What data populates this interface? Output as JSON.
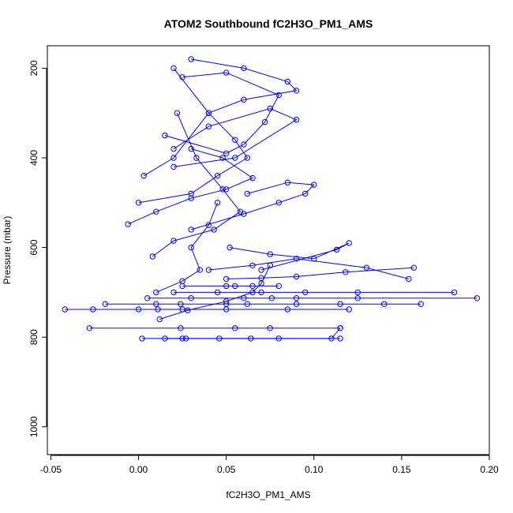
{
  "chart_data": {
    "type": "line",
    "title": "ATOM2 Southbound fC2H3O_PM1_AMS",
    "xlabel": "fC2H3O_PM1_AMS",
    "ylabel": "Pressure (mbar)",
    "xlim": [
      -0.052,
      0.2
    ],
    "ylim": [
      1062,
      150
    ],
    "y_reversed": true,
    "x_ticks": [
      -0.05,
      0.0,
      0.05,
      0.1,
      0.15,
      0.2
    ],
    "x_tick_labels": [
      "-0.05",
      "0.00",
      "0.05",
      "0.10",
      "0.15",
      "0.20"
    ],
    "y_ticks": [
      200,
      400,
      600,
      800,
      1000
    ],
    "y_tick_labels": [
      "200",
      "400",
      "600",
      "800",
      "1000"
    ],
    "grid": false,
    "legend": "none",
    "series_color": "#0000ff",
    "marker": "open-circle",
    "series": [
      {
        "x": [
          0.002,
          0.025,
          0.08,
          0.115
        ],
        "y": [
          803,
          803,
          803,
          803
        ]
      },
      {
        "x": [
          0.015,
          0.027,
          0.046,
          0.064,
          0.11,
          0.115
        ],
        "y": [
          803,
          803,
          803,
          803,
          803,
          780
        ]
      },
      {
        "x": [
          -0.028,
          0.024,
          0.055,
          0.075,
          0.115
        ],
        "y": [
          780,
          780,
          780,
          780,
          780
        ]
      },
      {
        "x": [
          -0.042,
          -0.026,
          0.0,
          0.011,
          0.025,
          0.05,
          0.085,
          0.12
        ],
        "y": [
          738,
          738,
          738,
          738,
          738,
          738,
          738,
          738
        ]
      },
      {
        "x": [
          -0.019,
          0.01,
          0.024,
          0.05,
          0.062,
          0.09,
          0.115,
          0.14,
          0.161
        ],
        "y": [
          726,
          726,
          726,
          726,
          726,
          726,
          726,
          726,
          726
        ]
      },
      {
        "x": [
          0.005,
          0.03,
          0.06,
          0.076,
          0.09,
          0.125,
          0.193
        ],
        "y": [
          713,
          713,
          713,
          713,
          713,
          713,
          713
        ]
      },
      {
        "x": [
          0.02,
          0.045,
          0.07,
          0.095,
          0.125,
          0.18
        ],
        "y": [
          700,
          700,
          700,
          700,
          700,
          700
        ]
      },
      {
        "x": [
          0.025,
          0.05,
          0.055,
          0.065,
          0.08
        ],
        "y": [
          686,
          686,
          686,
          686,
          686
        ]
      },
      {
        "x": [
          0.05,
          0.07,
          0.09,
          0.118,
          0.157
        ],
        "y": [
          670,
          668,
          665,
          655,
          645
        ]
      },
      {
        "x": [
          0.04,
          0.065,
          0.09,
          0.13,
          0.154
        ],
        "y": [
          650,
          640,
          625,
          645,
          670
        ]
      },
      {
        "x": [
          0.052,
          0.075,
          0.1,
          0.12,
          0.113,
          0.07
        ],
        "y": [
          600,
          615,
          625,
          590,
          605,
          650
        ]
      },
      {
        "x": [
          0.03,
          0.06,
          0.08,
          0.095,
          0.1,
          0.085,
          0.062
        ],
        "y": [
          560,
          525,
          500,
          480,
          460,
          455,
          480
        ]
      },
      {
        "x": [
          -0.006,
          0.01,
          0.03,
          0.05,
          0.065,
          0.048,
          0.03
        ],
        "y": [
          548,
          520,
          490,
          470,
          445,
          400,
          380
        ]
      },
      {
        "x": [
          0.02,
          0.055,
          0.09,
          0.075,
          0.04,
          0.02
        ],
        "y": [
          420,
          400,
          315,
          290,
          330,
          380
        ]
      },
      {
        "x": [
          0.015,
          0.05,
          0.06,
          0.072,
          0.08,
          0.05,
          0.025
        ],
        "y": [
          350,
          390,
          370,
          320,
          260,
          210,
          220
        ]
      },
      {
        "x": [
          0.003,
          0.02,
          0.04,
          0.06,
          0.09,
          0.085,
          0.06,
          0.03
        ],
        "y": [
          440,
          400,
          300,
          270,
          250,
          230,
          200,
          180
        ]
      },
      {
        "x": [
          0.0,
          0.03,
          0.045,
          0.062,
          0.055,
          0.04,
          0.02
        ],
        "y": [
          500,
          480,
          440,
          400,
          360,
          300,
          200
        ]
      },
      {
        "x": [
          0.008,
          0.02,
          0.043,
          0.058,
          0.048,
          0.033,
          0.022
        ],
        "y": [
          620,
          585,
          560,
          520,
          470,
          400,
          300
        ]
      },
      {
        "x": [
          0.01,
          0.025,
          0.035,
          0.03,
          0.04,
          0.045
        ],
        "y": [
          700,
          675,
          650,
          600,
          550,
          500
        ]
      },
      {
        "x": [
          0.012,
          0.028,
          0.05,
          0.065,
          0.07,
          0.075
        ],
        "y": [
          760,
          740,
          720,
          700,
          680,
          640
        ]
      }
    ]
  }
}
